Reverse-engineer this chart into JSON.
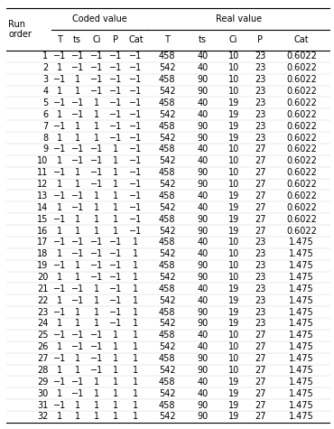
{
  "col_headers_row1_left": "Run\norder",
  "col_headers_row1_coded": "Coded value",
  "col_headers_row1_real": "Real value",
  "col_headers_row2": [
    "T",
    "ts",
    "Ci",
    "P",
    "Cat",
    "T",
    "ts",
    "Ci",
    "P",
    "Cat"
  ],
  "coded_values": [
    [
      -1,
      -1,
      -1,
      -1,
      -1
    ],
    [
      1,
      -1,
      -1,
      -1,
      -1
    ],
    [
      -1,
      1,
      -1,
      -1,
      -1
    ],
    [
      1,
      1,
      -1,
      -1,
      -1
    ],
    [
      -1,
      -1,
      1,
      -1,
      -1
    ],
    [
      1,
      -1,
      1,
      -1,
      -1
    ],
    [
      -1,
      1,
      1,
      -1,
      -1
    ],
    [
      1,
      1,
      1,
      -1,
      -1
    ],
    [
      -1,
      -1,
      -1,
      1,
      -1
    ],
    [
      1,
      -1,
      -1,
      1,
      -1
    ],
    [
      -1,
      1,
      -1,
      1,
      -1
    ],
    [
      1,
      1,
      -1,
      1,
      -1
    ],
    [
      -1,
      -1,
      1,
      1,
      -1
    ],
    [
      1,
      -1,
      1,
      1,
      -1
    ],
    [
      -1,
      1,
      1,
      1,
      -1
    ],
    [
      1,
      1,
      1,
      1,
      -1
    ],
    [
      -1,
      -1,
      -1,
      -1,
      1
    ],
    [
      1,
      -1,
      -1,
      -1,
      1
    ],
    [
      -1,
      1,
      -1,
      -1,
      1
    ],
    [
      1,
      1,
      -1,
      -1,
      1
    ],
    [
      -1,
      -1,
      1,
      -1,
      1
    ],
    [
      1,
      -1,
      1,
      -1,
      1
    ],
    [
      -1,
      1,
      1,
      -1,
      1
    ],
    [
      1,
      1,
      1,
      -1,
      1
    ],
    [
      -1,
      -1,
      -1,
      1,
      1
    ],
    [
      1,
      -1,
      -1,
      1,
      1
    ],
    [
      -1,
      1,
      -1,
      1,
      1
    ],
    [
      1,
      1,
      -1,
      1,
      1
    ],
    [
      -1,
      -1,
      1,
      1,
      1
    ],
    [
      1,
      -1,
      1,
      1,
      1
    ],
    [
      -1,
      1,
      1,
      1,
      1
    ],
    [
      1,
      1,
      1,
      1,
      1
    ]
  ],
  "real_values": [
    [
      458,
      40,
      10,
      23,
      "0.6022"
    ],
    [
      542,
      40,
      10,
      23,
      "0.6022"
    ],
    [
      458,
      90,
      10,
      23,
      "0.6022"
    ],
    [
      542,
      90,
      10,
      23,
      "0.6022"
    ],
    [
      458,
      40,
      19,
      23,
      "0.6022"
    ],
    [
      542,
      40,
      19,
      23,
      "0.6022"
    ],
    [
      458,
      90,
      19,
      23,
      "0.6022"
    ],
    [
      542,
      90,
      19,
      23,
      "0.6022"
    ],
    [
      458,
      40,
      10,
      27,
      "0.6022"
    ],
    [
      542,
      40,
      10,
      27,
      "0.6022"
    ],
    [
      458,
      90,
      10,
      27,
      "0.6022"
    ],
    [
      542,
      90,
      10,
      27,
      "0.6022"
    ],
    [
      458,
      40,
      19,
      27,
      "0.6022"
    ],
    [
      542,
      40,
      19,
      27,
      "0.6022"
    ],
    [
      458,
      90,
      19,
      27,
      "0.6022"
    ],
    [
      542,
      90,
      19,
      27,
      "0.6022"
    ],
    [
      458,
      40,
      10,
      23,
      "1.475"
    ],
    [
      542,
      40,
      10,
      23,
      "1.475"
    ],
    [
      458,
      90,
      10,
      23,
      "1.475"
    ],
    [
      542,
      90,
      10,
      23,
      "1.475"
    ],
    [
      458,
      40,
      19,
      23,
      "1.475"
    ],
    [
      542,
      40,
      19,
      23,
      "1.475"
    ],
    [
      458,
      90,
      19,
      23,
      "1.475"
    ],
    [
      542,
      90,
      19,
      23,
      "1.475"
    ],
    [
      458,
      40,
      10,
      27,
      "1.475"
    ],
    [
      542,
      40,
      10,
      27,
      "1.475"
    ],
    [
      458,
      90,
      10,
      27,
      "1.475"
    ],
    [
      542,
      90,
      10,
      27,
      "1.475"
    ],
    [
      458,
      40,
      19,
      27,
      "1.475"
    ],
    [
      542,
      40,
      19,
      27,
      "1.475"
    ],
    [
      458,
      90,
      19,
      27,
      "1.475"
    ],
    [
      542,
      90,
      19,
      27,
      "1.475"
    ]
  ],
  "bg_color": "#ffffff",
  "text_color": "#000000",
  "font_size": 7.0,
  "neg_char": "−1",
  "minus_char": "−"
}
